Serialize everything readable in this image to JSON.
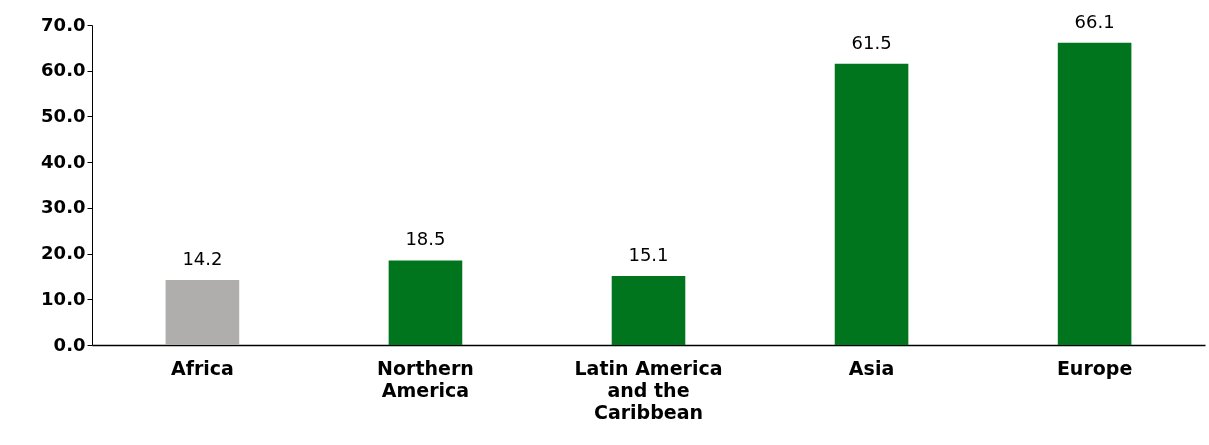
{
  "chart_data": {
    "type": "bar",
    "categories": [
      "Africa",
      "Northern America",
      "Latin America and the Caribbean",
      "Asia",
      "Europe"
    ],
    "values": [
      14.2,
      18.5,
      15.1,
      61.5,
      66.1
    ],
    "colors": [
      "#b0adad",
      "#00751e",
      "#00751e",
      "#00751e",
      "#00751e"
    ],
    "ylim": [
      0,
      70
    ],
    "yticks": [
      {
        "value": 0,
        "label": "0.0"
      },
      {
        "value": 10,
        "label": "10.0"
      },
      {
        "value": 20,
        "label": "20.0"
      },
      {
        "value": 30,
        "label": "30.0"
      },
      {
        "value": 40,
        "label": "40.0"
      },
      {
        "value": 50,
        "label": "50.0"
      },
      {
        "value": 60,
        "label": "60.0"
      },
      {
        "value": 70,
        "label": "70.0"
      }
    ],
    "data_labels": true,
    "grid": false,
    "legend": false
  }
}
